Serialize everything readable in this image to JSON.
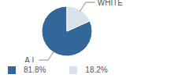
{
  "chart_data": {
    "type": "pie",
    "categories": [
      "A.I.",
      "WHITE"
    ],
    "values": [
      81.8,
      18.2
    ],
    "value_labels": [
      "81.8%",
      "18.2%"
    ],
    "colors": [
      "#336699",
      "#d9e1ea"
    ]
  }
}
